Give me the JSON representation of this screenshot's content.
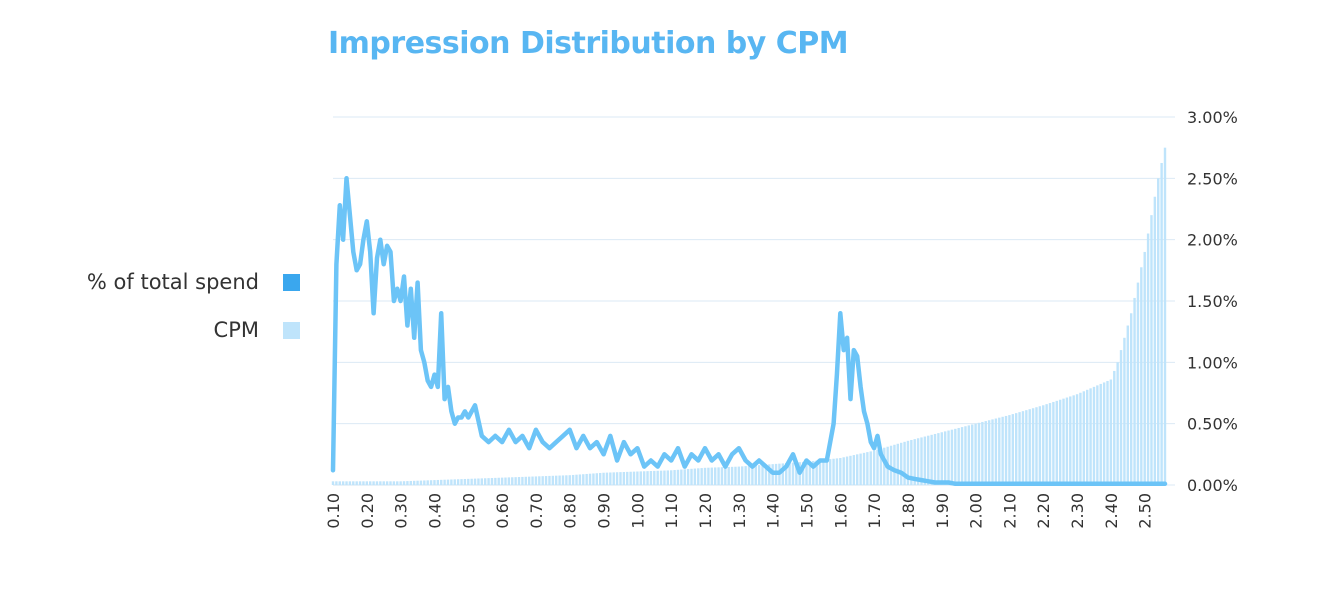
{
  "chart_data": {
    "type": "bar",
    "title": "Impression Distribution by CPM",
    "xlabel": "",
    "ylabel": "",
    "ylim": [
      0,
      3.0
    ],
    "y_ticks": [
      "0.00%",
      "0.50%",
      "1.00%",
      "1.50%",
      "2.00%",
      "2.50%",
      "3.00%"
    ],
    "x_ticks": [
      "0.10",
      "0.20",
      "0.30",
      "0.40",
      "0.50",
      "0.60",
      "0.70",
      "0.80",
      "0.90",
      "1.00",
      "1.10",
      "1.20",
      "1.30",
      "1.40",
      "1.50",
      "1.60",
      "1.70",
      "1.80",
      "1.90",
      "2.00",
      "2.10",
      "2.20",
      "2.30",
      "2.40",
      "2.50"
    ],
    "xlim": [
      0.1,
      2.56
    ],
    "grid": true,
    "legend_placement": "left",
    "series": [
      {
        "name": "% of total spend",
        "kind": "line",
        "color": "#6cc4f7",
        "x": [
          0.1,
          0.11,
          0.12,
          0.13,
          0.14,
          0.15,
          0.16,
          0.17,
          0.18,
          0.19,
          0.2,
          0.21,
          0.22,
          0.23,
          0.24,
          0.25,
          0.26,
          0.27,
          0.28,
          0.29,
          0.3,
          0.31,
          0.32,
          0.33,
          0.34,
          0.35,
          0.36,
          0.37,
          0.38,
          0.39,
          0.4,
          0.41,
          0.42,
          0.43,
          0.44,
          0.45,
          0.46,
          0.47,
          0.48,
          0.49,
          0.5,
          0.52,
          0.54,
          0.56,
          0.58,
          0.6,
          0.62,
          0.64,
          0.66,
          0.68,
          0.7,
          0.72,
          0.74,
          0.76,
          0.78,
          0.8,
          0.82,
          0.84,
          0.86,
          0.88,
          0.9,
          0.92,
          0.94,
          0.96,
          0.98,
          1.0,
          1.02,
          1.04,
          1.06,
          1.08,
          1.1,
          1.12,
          1.14,
          1.16,
          1.18,
          1.2,
          1.22,
          1.24,
          1.26,
          1.28,
          1.3,
          1.32,
          1.34,
          1.36,
          1.38,
          1.4,
          1.42,
          1.44,
          1.46,
          1.48,
          1.5,
          1.52,
          1.54,
          1.56,
          1.58,
          1.59,
          1.6,
          1.61,
          1.62,
          1.63,
          1.64,
          1.65,
          1.66,
          1.67,
          1.68,
          1.69,
          1.7,
          1.71,
          1.72,
          1.74,
          1.76,
          1.78,
          1.8,
          1.82,
          1.84,
          1.86,
          1.88,
          1.9,
          1.92,
          1.94,
          1.96,
          2.0,
          2.1,
          2.2,
          2.3,
          2.4,
          2.5,
          2.56
        ],
        "values": [
          0.12,
          1.8,
          2.28,
          2.0,
          2.5,
          2.2,
          1.9,
          1.75,
          1.8,
          2.0,
          2.15,
          1.9,
          1.4,
          1.85,
          2.0,
          1.8,
          1.95,
          1.9,
          1.5,
          1.6,
          1.5,
          1.7,
          1.3,
          1.6,
          1.2,
          1.65,
          1.1,
          1.0,
          0.85,
          0.8,
          0.9,
          0.8,
          1.4,
          0.7,
          0.8,
          0.6,
          0.5,
          0.55,
          0.55,
          0.6,
          0.55,
          0.65,
          0.4,
          0.35,
          0.4,
          0.35,
          0.45,
          0.35,
          0.4,
          0.3,
          0.45,
          0.35,
          0.3,
          0.35,
          0.4,
          0.45,
          0.3,
          0.4,
          0.3,
          0.35,
          0.25,
          0.4,
          0.2,
          0.35,
          0.25,
          0.3,
          0.15,
          0.2,
          0.15,
          0.25,
          0.2,
          0.3,
          0.15,
          0.25,
          0.2,
          0.3,
          0.2,
          0.25,
          0.15,
          0.25,
          0.3,
          0.2,
          0.15,
          0.2,
          0.15,
          0.1,
          0.1,
          0.15,
          0.25,
          0.1,
          0.2,
          0.15,
          0.2,
          0.2,
          0.5,
          0.9,
          1.4,
          1.1,
          1.2,
          0.7,
          1.1,
          1.05,
          0.8,
          0.6,
          0.5,
          0.35,
          0.3,
          0.4,
          0.25,
          0.15,
          0.12,
          0.1,
          0.06,
          0.05,
          0.04,
          0.03,
          0.02,
          0.02,
          0.02,
          0.01,
          0.01,
          0.01,
          0.01,
          0.01,
          0.01,
          0.01,
          0.01,
          0.01
        ]
      },
      {
        "name": "CPM",
        "kind": "bar",
        "color": "#bfe4fb",
        "x": [
          0.1,
          0.2,
          0.3,
          0.4,
          0.5,
          0.6,
          0.7,
          0.8,
          0.9,
          1.0,
          1.1,
          1.2,
          1.3,
          1.4,
          1.5,
          1.6,
          1.7,
          1.8,
          1.9,
          2.0,
          2.1,
          2.2,
          2.3,
          2.35,
          2.4,
          2.42,
          2.44,
          2.46,
          2.48,
          2.5,
          2.52,
          2.54,
          2.56
        ],
        "values": [
          0.03,
          0.03,
          0.03,
          0.04,
          0.05,
          0.06,
          0.07,
          0.08,
          0.1,
          0.11,
          0.12,
          0.14,
          0.15,
          0.17,
          0.19,
          0.22,
          0.28,
          0.36,
          0.43,
          0.5,
          0.57,
          0.65,
          0.74,
          0.8,
          0.86,
          1.0,
          1.2,
          1.4,
          1.65,
          1.9,
          2.2,
          2.5,
          2.75
        ]
      }
    ]
  },
  "legend": [
    {
      "label": "% of total spend",
      "color": "#3aa7ee"
    },
    {
      "label": "CPM",
      "color": "#bfe4fb"
    }
  ]
}
